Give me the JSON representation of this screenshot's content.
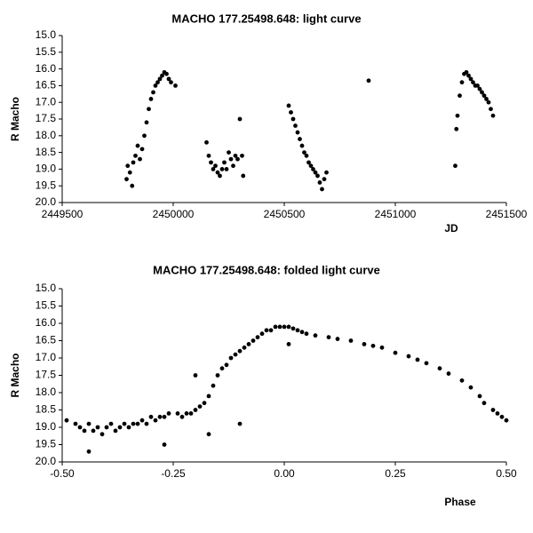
{
  "chart_data": [
    {
      "type": "scatter",
      "title": "MACHO 177.25498.648: light curve",
      "x_label": "JD",
      "y_label": "R Macho",
      "color": "#000000",
      "y_inverted": true,
      "xlim": [
        2449500,
        2451500
      ],
      "xticks": [
        2449500,
        2450000,
        2450500,
        2451000,
        2451500
      ],
      "ylim": [
        15,
        20
      ],
      "yticks": [
        {
          "value": 15,
          "label": "15.0"
        },
        15.5,
        {
          "value": 16,
          "label": "16.0"
        },
        16.5,
        {
          "value": 17,
          "label": "17.0"
        },
        17.5,
        {
          "value": 18,
          "label": "18.0"
        },
        18.5,
        {
          "value": 19,
          "label": "19.0"
        },
        19.5,
        {
          "value": 20,
          "label": "20.0"
        }
      ],
      "x": [
        2449790,
        2449795,
        2449805,
        2449815,
        2449820,
        2449830,
        2449840,
        2449850,
        2449860,
        2449870,
        2449880,
        2449890,
        2449900,
        2449910,
        2449920,
        2449930,
        2449940,
        2449950,
        2449960,
        2449970,
        2449980,
        2449990,
        2450010,
        2450150,
        2450160,
        2450170,
        2450180,
        2450190,
        2450200,
        2450210,
        2450220,
        2450230,
        2450240,
        2450250,
        2450260,
        2450270,
        2450280,
        2450290,
        2450300,
        2450310,
        2450315,
        2450520,
        2450530,
        2450540,
        2450550,
        2450560,
        2450570,
        2450580,
        2450590,
        2450600,
        2450610,
        2450620,
        2450630,
        2450640,
        2450650,
        2450660,
        2450670,
        2450680,
        2450690,
        2450880,
        2451270,
        2451275,
        2451280,
        2451290,
        2451300,
        2451310,
        2451320,
        2451330,
        2451340,
        2451350,
        2451360,
        2451370,
        2451380,
        2451390,
        2451400,
        2451410,
        2451420,
        2451430,
        2451440
      ],
      "values": [
        19.3,
        18.9,
        19.1,
        19.5,
        18.8,
        18.6,
        18.3,
        18.7,
        18.4,
        18.0,
        17.6,
        17.2,
        16.9,
        16.7,
        16.5,
        16.4,
        16.3,
        16.2,
        16.1,
        16.15,
        16.3,
        16.4,
        16.5,
        18.2,
        18.6,
        18.8,
        19.0,
        18.9,
        19.1,
        19.2,
        19.0,
        18.8,
        19.0,
        18.5,
        18.7,
        18.9,
        18.6,
        18.7,
        17.5,
        18.6,
        19.2,
        17.1,
        17.3,
        17.5,
        17.7,
        17.9,
        18.1,
        18.3,
        18.5,
        18.6,
        18.8,
        18.9,
        19.0,
        19.1,
        19.2,
        19.4,
        19.6,
        19.3,
        19.1,
        16.35,
        18.9,
        17.8,
        17.4,
        16.8,
        16.4,
        16.15,
        16.1,
        16.2,
        16.3,
        16.4,
        16.5,
        16.5,
        16.6,
        16.7,
        16.8,
        16.9,
        17.0,
        17.2,
        17.4
      ]
    },
    {
      "type": "scatter",
      "title": "MACHO 177.25498.648: folded light curve",
      "x_label": "Phase",
      "y_label": "R Macho",
      "color": "#000000",
      "y_inverted": true,
      "xlim": [
        -0.5,
        0.5
      ],
      "xticks": [
        {
          "value": -0.5,
          "label": "-0.50"
        },
        {
          "value": -0.25,
          "label": "-0.25"
        },
        {
          "value": 0,
          "label": "0.00"
        },
        {
          "value": 0.25,
          "label": "0.25"
        },
        {
          "value": 0.5,
          "label": "0.50"
        }
      ],
      "ylim": [
        15,
        20
      ],
      "yticks": [
        {
          "value": 15,
          "label": "15.0"
        },
        15.5,
        {
          "value": 16,
          "label": "16.0"
        },
        16.5,
        {
          "value": 17,
          "label": "17.0"
        },
        17.5,
        {
          "value": 18,
          "label": "18.0"
        },
        18.5,
        {
          "value": 19,
          "label": "19.0"
        },
        19.5,
        {
          "value": 20,
          "label": "20.0"
        }
      ],
      "x": [
        -0.49,
        -0.47,
        -0.46,
        -0.45,
        -0.44,
        -0.43,
        -0.42,
        -0.41,
        -0.4,
        -0.39,
        -0.38,
        -0.37,
        -0.36,
        -0.35,
        -0.34,
        -0.33,
        -0.32,
        -0.31,
        -0.3,
        -0.29,
        -0.28,
        -0.27,
        -0.26,
        -0.24,
        -0.23,
        -0.22,
        -0.21,
        -0.2,
        -0.19,
        -0.18,
        -0.17,
        -0.16,
        -0.15,
        -0.14,
        -0.13,
        -0.12,
        -0.11,
        -0.1,
        -0.09,
        -0.08,
        -0.07,
        -0.06,
        -0.05,
        -0.04,
        -0.03,
        -0.02,
        -0.01,
        0.0,
        0.01,
        0.02,
        0.03,
        0.04,
        0.05,
        0.07,
        0.1,
        0.12,
        0.15,
        0.18,
        0.2,
        0.22,
        0.25,
        0.28,
        0.3,
        0.32,
        0.35,
        0.37,
        0.4,
        0.42,
        0.44,
        0.45,
        0.47,
        0.48,
        0.49,
        0.5,
        -0.44,
        -0.27,
        -0.17,
        -0.1,
        -0.2,
        0.01
      ],
      "values": [
        18.8,
        18.9,
        19.0,
        19.1,
        18.9,
        19.1,
        19.0,
        19.2,
        19.0,
        18.9,
        19.1,
        19.0,
        18.9,
        19.0,
        18.9,
        18.9,
        18.8,
        18.9,
        18.7,
        18.8,
        18.7,
        18.7,
        18.6,
        18.6,
        18.7,
        18.6,
        18.6,
        18.5,
        18.4,
        18.3,
        18.1,
        17.8,
        17.5,
        17.3,
        17.2,
        17.0,
        16.9,
        16.8,
        16.7,
        16.6,
        16.5,
        16.4,
        16.3,
        16.2,
        16.2,
        16.1,
        16.1,
        16.1,
        16.1,
        16.15,
        16.2,
        16.25,
        16.3,
        16.35,
        16.4,
        16.45,
        16.5,
        16.6,
        16.65,
        16.7,
        16.85,
        16.95,
        17.05,
        17.15,
        17.3,
        17.45,
        17.65,
        17.85,
        18.1,
        18.3,
        18.5,
        18.6,
        18.7,
        18.8,
        19.7,
        19.5,
        19.2,
        18.9,
        17.5,
        16.6
      ]
    }
  ]
}
